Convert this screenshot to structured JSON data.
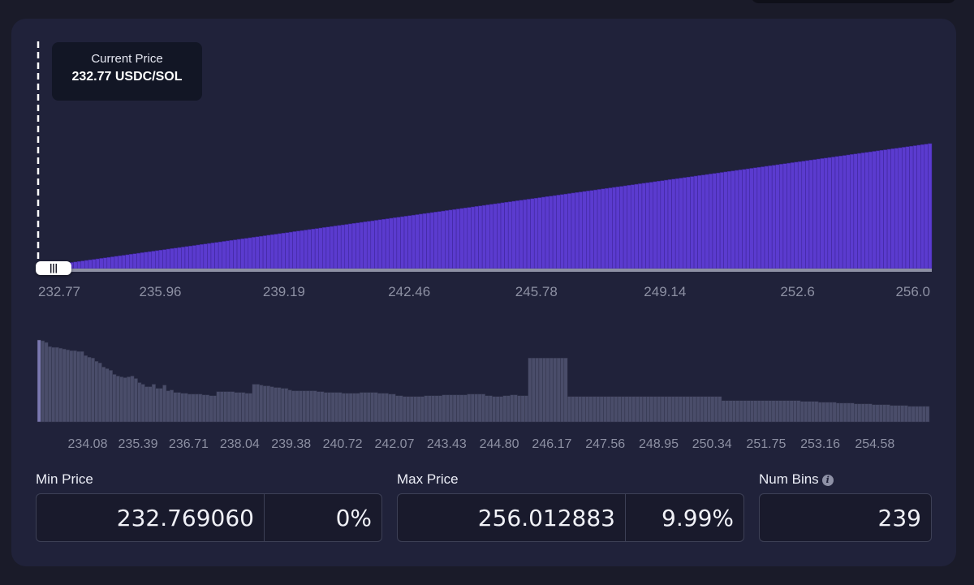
{
  "current_price": {
    "label": "Current Price",
    "value": "232.77 USDC/SOL"
  },
  "colors": {
    "bar_fill": "#5b3bcf",
    "bar_stroke": "#3c2494",
    "hist_fill": "#4a4d6a",
    "hist_stroke": "#30324a",
    "axis_text": "#8d90a3"
  },
  "chart_data": [
    {
      "type": "bar",
      "title": "",
      "xlabel": "",
      "ylabel": "",
      "x_range": [
        232.77,
        256.0
      ],
      "bin_count": 239,
      "y_shape": "linear increase from near 0 at 232.77 to max at 256.0",
      "y_values_relative": [
        0.02,
        1.0
      ],
      "tick_labels": [
        "232.77",
        "235.96",
        "239.19",
        "242.46",
        "245.78",
        "249.14",
        "252.6",
        "256.0"
      ],
      "tick_values": [
        232.77,
        235.96,
        239.19,
        242.46,
        245.78,
        249.14,
        252.6,
        256.0
      ],
      "grid": false
    },
    {
      "type": "bar",
      "title": "",
      "xlabel": "",
      "ylabel": "",
      "tick_labels": [
        "234.08",
        "235.39",
        "236.71",
        "238.04",
        "239.38",
        "240.72",
        "242.07",
        "243.43",
        "244.80",
        "246.17",
        "247.56",
        "248.95",
        "250.34",
        "251.75",
        "253.16",
        "254.58"
      ],
      "tick_values": [
        234.08,
        235.39,
        236.71,
        238.04,
        239.38,
        240.72,
        242.07,
        243.43,
        244.8,
        246.17,
        247.56,
        248.95,
        250.34,
        251.75,
        253.16,
        254.58
      ],
      "values": [
        100,
        99,
        97,
        92,
        91,
        91,
        90,
        89,
        88,
        87,
        87,
        86,
        86,
        81,
        79,
        78,
        74,
        72,
        67,
        65,
        63,
        58,
        56,
        55,
        54,
        55,
        56,
        53,
        48,
        46,
        43,
        43,
        46,
        41,
        41,
        45,
        38,
        39,
        36,
        36,
        35,
        35,
        34,
        34,
        34,
        34,
        33,
        33,
        32,
        32,
        37,
        37,
        37,
        37,
        37,
        36,
        36,
        36,
        35,
        35,
        46,
        46,
        45,
        44,
        44,
        43,
        42,
        42,
        41,
        41,
        39,
        38,
        38,
        38,
        38,
        38,
        38,
        38,
        37,
        37,
        36,
        36,
        36,
        36,
        36,
        35,
        35,
        35,
        35,
        35,
        36,
        36,
        36,
        36,
        36,
        35,
        35,
        35,
        34,
        34,
        32,
        32,
        31,
        31,
        31,
        31,
        31,
        31,
        32,
        32,
        32,
        32,
        32,
        33,
        33,
        33,
        33,
        33,
        33,
        33,
        34,
        34,
        34,
        34,
        34,
        32,
        32,
        31,
        31,
        31,
        32,
        32,
        33,
        33,
        32,
        32,
        32,
        78,
        78,
        78,
        78,
        78,
        78,
        78,
        78,
        78,
        78,
        78,
        31,
        31,
        31,
        31,
        31,
        31,
        31,
        31,
        31,
        31,
        31,
        31,
        31,
        31,
        31,
        31,
        31,
        31,
        31,
        31,
        31,
        31,
        31,
        31,
        31,
        31,
        31,
        31,
        31,
        31,
        31,
        31,
        31,
        31,
        31,
        31,
        31,
        31,
        31,
        31,
        31,
        31,
        31,
        26,
        26,
        26,
        26,
        26,
        26,
        26,
        26,
        26,
        26,
        26,
        26,
        26,
        26,
        26,
        26,
        26,
        26,
        26,
        26,
        26,
        26,
        25,
        25,
        25,
        25,
        25,
        24,
        24,
        24,
        24,
        24,
        23,
        23,
        23,
        23,
        23,
        22,
        22,
        22,
        22,
        22,
        21,
        21,
        21,
        21,
        21,
        20,
        20,
        20,
        20,
        20,
        19,
        19,
        19,
        19,
        19,
        19
      ],
      "grid": false
    }
  ],
  "min_price": {
    "label": "Min Price",
    "value": "232.769060",
    "percent": "0%"
  },
  "max_price": {
    "label": "Max Price",
    "value": "256.012883",
    "percent": "9.99%"
  },
  "num_bins": {
    "label": "Num Bins",
    "value": "239",
    "info_icon": "info-icon"
  },
  "slider_handle": {
    "glyph": "|||"
  }
}
